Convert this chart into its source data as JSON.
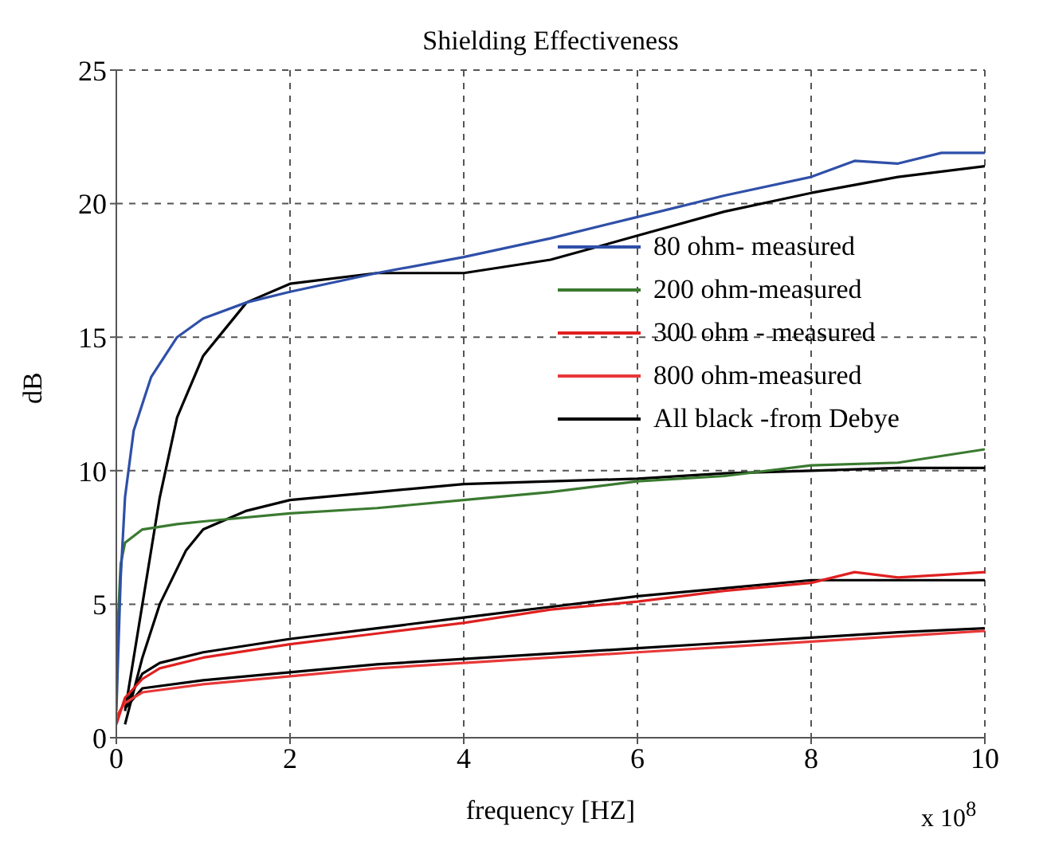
{
  "chart_data": {
    "type": "line",
    "title": "Shielding Effectiveness",
    "xlabel": "frequency [HZ]",
    "ylabel": "dB",
    "annotations": [
      "x 10$^{8}$"
    ],
    "xlim": [
      0,
      10
    ],
    "xticks": [
      0,
      2,
      4,
      6,
      8,
      10
    ],
    "ylim": [
      0,
      25
    ],
    "yticks": [
      0,
      5,
      10,
      15,
      20,
      25
    ],
    "grid": true,
    "legend": "right",
    "marker": "none",
    "line_style": "solid",
    "series": [
      {
        "name": "80 ohm- measured",
        "color": "#2f4fa8",
        "x": [
          0,
          0.05,
          0.1,
          0.2,
          0.4,
          0.7,
          1,
          1.5,
          2,
          3,
          4,
          5,
          6,
          7,
          8,
          8.5,
          9,
          9.5,
          10
        ],
        "values": [
          1,
          6,
          9,
          11.5,
          13.5,
          15,
          15.7,
          16.3,
          16.7,
          17.4,
          18,
          18.7,
          19.5,
          20.3,
          21,
          21.6,
          21.5,
          21.9,
          21.9
        ]
      },
      {
        "name": "200 ohm-measured",
        "color": "#3a7a30",
        "x": [
          0,
          0.05,
          0.1,
          0.3,
          0.7,
          1,
          2,
          3,
          4,
          5,
          6,
          7,
          8,
          9,
          10
        ],
        "values": [
          3,
          6.5,
          7.3,
          7.8,
          8,
          8.1,
          8.4,
          8.6,
          8.9,
          9.2,
          9.6,
          9.8,
          10.2,
          10.3,
          10.8
        ]
      },
      {
        "name": "300 ohm - measured",
        "color": "#e02020",
        "x": [
          0,
          0.1,
          0.3,
          0.5,
          1,
          2,
          3,
          4,
          5,
          6,
          7,
          8,
          8.5,
          9,
          9.5,
          10
        ],
        "values": [
          0.5,
          1.5,
          2.2,
          2.6,
          3,
          3.5,
          3.9,
          4.3,
          4.8,
          5.1,
          5.5,
          5.8,
          6.2,
          6,
          6.1,
          6.2
        ]
      },
      {
        "name": "800 ohm-measured",
        "color": "#e83838",
        "x": [
          0,
          0.1,
          0.3,
          1,
          2,
          3,
          4,
          5,
          6,
          7,
          8,
          9,
          10
        ],
        "values": [
          0.8,
          1.3,
          1.7,
          2,
          2.3,
          2.6,
          2.8,
          3,
          3.2,
          3.4,
          3.6,
          3.8,
          4
        ]
      },
      {
        "name": "All black -from Debye",
        "color": "#000000",
        "x": [
          0.1,
          0.3,
          0.5,
          0.7,
          1,
          1.5,
          2,
          3,
          4,
          5,
          6,
          7,
          8,
          9,
          10
        ],
        "values": [
          1,
          5,
          9,
          12,
          14.3,
          16.3,
          17,
          17.4,
          17.4,
          17.9,
          18.8,
          19.7,
          20.4,
          21,
          21.4
        ]
      },
      {
        "color": "#000000",
        "x": [
          0.1,
          0.3,
          0.5,
          0.8,
          1,
          1.5,
          2,
          3,
          4,
          5,
          6,
          7,
          8,
          9,
          10
        ],
        "values": [
          0.5,
          3,
          5,
          7,
          7.8,
          8.5,
          8.9,
          9.2,
          9.5,
          9.6,
          9.7,
          9.9,
          10,
          10.1,
          10.1
        ]
      },
      {
        "color": "#000000",
        "x": [
          0.1,
          0.3,
          0.5,
          1,
          2,
          3,
          4,
          5,
          6,
          7,
          8,
          9,
          10
        ],
        "values": [
          1.2,
          2.4,
          2.8,
          3.2,
          3.7,
          4.1,
          4.5,
          4.9,
          5.3,
          5.6,
          5.9,
          5.9,
          5.9
        ]
      },
      {
        "color": "#000000",
        "x": [
          0.1,
          0.3,
          1,
          2,
          3,
          4,
          5,
          6,
          7,
          8,
          9,
          10
        ],
        "values": [
          1.1,
          1.85,
          2.15,
          2.45,
          2.75,
          2.95,
          3.15,
          3.35,
          3.55,
          3.75,
          3.95,
          4.1
        ]
      }
    ]
  }
}
